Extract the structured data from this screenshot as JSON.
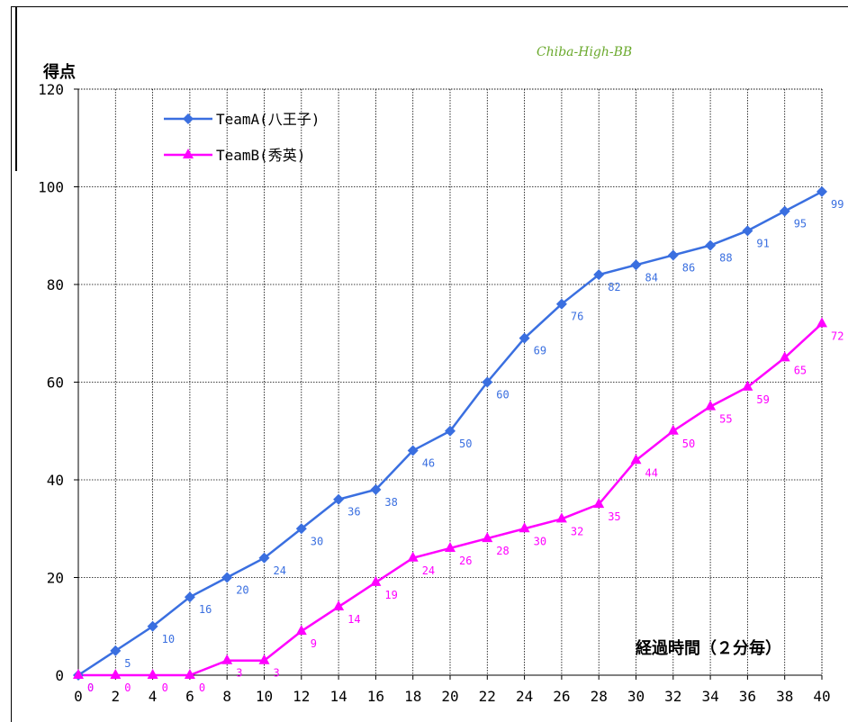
{
  "chart_data": {
    "type": "line",
    "watermark": "Chiba-High-BB",
    "ylabel": "得点",
    "xlabel": "経過時間（２分毎）",
    "xlim": [
      0,
      40
    ],
    "ylim": [
      0,
      120
    ],
    "x_ticks": [
      0,
      2,
      4,
      6,
      8,
      10,
      12,
      14,
      16,
      18,
      20,
      22,
      24,
      26,
      28,
      30,
      32,
      34,
      36,
      38,
      40
    ],
    "y_ticks": [
      0,
      20,
      40,
      60,
      80,
      100,
      120
    ],
    "grid": true,
    "legend_position": "top-left",
    "x": [
      0,
      2,
      4,
      6,
      8,
      10,
      12,
      14,
      16,
      18,
      20,
      22,
      24,
      26,
      28,
      30,
      32,
      34,
      36,
      38,
      40
    ],
    "series": [
      {
        "name": "TeamA(八王子)",
        "color": "#3a6fe0",
        "marker": "diamond",
        "values": [
          0,
          5,
          10,
          16,
          20,
          24,
          30,
          36,
          38,
          46,
          50,
          60,
          69,
          76,
          82,
          84,
          86,
          88,
          91,
          95,
          99
        ]
      },
      {
        "name": "TeamB(秀英)",
        "color": "#ff00ff",
        "marker": "triangle",
        "values": [
          0,
          0,
          0,
          0,
          3,
          3,
          9,
          14,
          19,
          24,
          26,
          28,
          30,
          32,
          35,
          44,
          50,
          55,
          59,
          65,
          72
        ]
      }
    ]
  }
}
